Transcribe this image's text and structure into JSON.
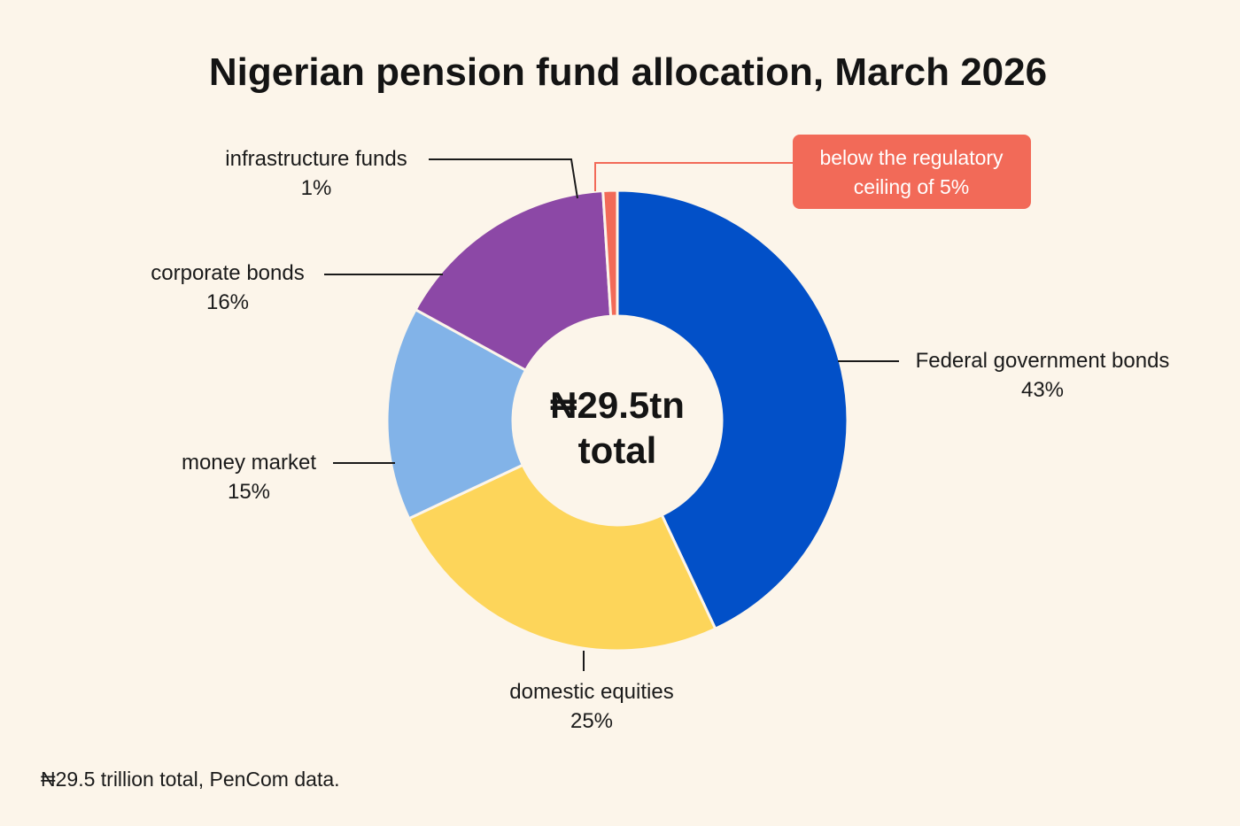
{
  "chart_data": {
    "type": "pie",
    "title": "Nigerian pension fund allocation, March 2026",
    "center_label": [
      "₦29.5tn",
      "total"
    ],
    "slices": [
      {
        "label": "Federal government bonds",
        "value": 43,
        "value_label": "43%",
        "color": "#0250c8"
      },
      {
        "label": "domestic equities",
        "value": 25,
        "value_label": "25%",
        "color": "#fdd55a"
      },
      {
        "label": "money market",
        "value": 15,
        "value_label": "15%",
        "color": "#82b3e8"
      },
      {
        "label": "corporate bonds",
        "value": 16,
        "value_label": "16%",
        "color": "#8c48a6"
      },
      {
        "label": "infrastructure funds",
        "value": 1,
        "value_label": "1%",
        "color": "#f26a58"
      }
    ],
    "annotation": {
      "text": [
        "below the regulatory",
        "ceiling of 5%"
      ],
      "target": "infrastructure funds",
      "color": "#f26a58"
    },
    "footnote": "₦29.5 trillion total, PenCom data."
  }
}
